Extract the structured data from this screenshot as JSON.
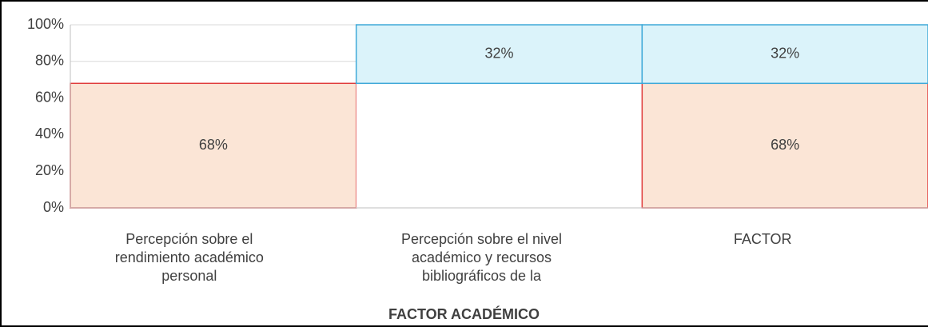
{
  "chart_data": {
    "type": "stacked_bar",
    "x_label": "FACTOR ACADÉMICO",
    "categories": [
      "Percepción sobre el rendimiento académico personal",
      "Percepción sobre el nivel académico y recursos bibliográficos de la",
      "FACTOR"
    ],
    "series": [
      {
        "values": [
          68,
          68,
          68
        ],
        "value_labels": [
          "68%",
          null,
          "68%"
        ],
        "colors": [
          "#fbe5d6",
          "#ffffff",
          "#fbe5d6"
        ],
        "edgecolors": [
          "#e03c3c",
          null,
          "#e03c3c"
        ]
      },
      {
        "values": [
          null,
          32,
          32
        ],
        "value_labels": [
          null,
          "32%",
          "32%"
        ],
        "colors": [
          null,
          "#dbf3fa",
          "#dbf3fa"
        ],
        "edgecolors": [
          null,
          "#3fa9d8",
          "#3fa9d8"
        ]
      }
    ],
    "ylim": [
      0,
      100
    ],
    "yticks": [
      {
        "value": 0,
        "label": "0%"
      },
      {
        "value": 20,
        "label": "20%"
      },
      {
        "value": 40,
        "label": "40%"
      },
      {
        "value": 60,
        "label": "60%"
      },
      {
        "value": 80,
        "label": "80%"
      },
      {
        "value": 100,
        "label": "100%"
      }
    ],
    "grid": true
  }
}
